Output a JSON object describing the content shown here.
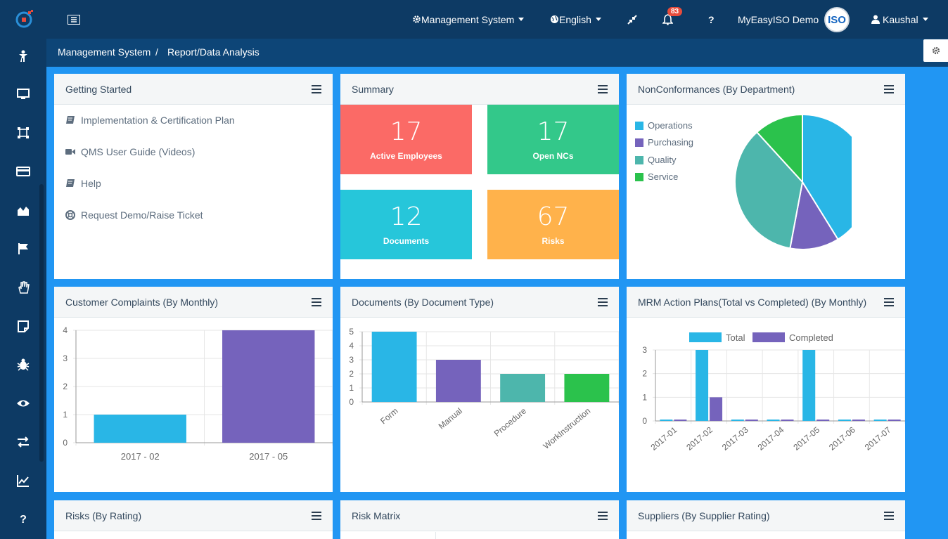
{
  "app": {
    "nav_management": "Management System",
    "nav_language": "English",
    "notification_count": "83",
    "help_label": "?",
    "org_name": "MyEasyISO Demo",
    "avatar_text": "ISO",
    "user_name": "Kaushal"
  },
  "breadcrumb": {
    "root": "Management System",
    "separator": "/",
    "current": "Report/Data Analysis"
  },
  "sidebar_help": "?",
  "getting_started": {
    "title": "Getting Started",
    "items": [
      {
        "label": "Implementation & Certification Plan",
        "icon": "book-icon"
      },
      {
        "label": "QMS User Guide (Videos)",
        "icon": "video-icon"
      },
      {
        "label": "Help",
        "icon": "book-icon"
      },
      {
        "label": "Request Demo/Raise Ticket",
        "icon": "lifering-icon"
      }
    ]
  },
  "summary": {
    "title": "Summary",
    "tiles": [
      {
        "value": "17",
        "label": "Active Employees",
        "color": "#fb6a66"
      },
      {
        "value": "17",
        "label": "Open NCs",
        "color": "#33c88a"
      },
      {
        "value": "12",
        "label": "Documents",
        "color": "#26c6da"
      },
      {
        "value": "67",
        "label": "Risks",
        "color": "#ffb24b"
      }
    ]
  },
  "nc_panel": {
    "title": "NonConformances (By Department)"
  },
  "complaints_panel": {
    "title": "Customer Complaints (By Monthly)"
  },
  "documents_panel": {
    "title": "Documents (By Document Type)"
  },
  "mrm_panel": {
    "title": "MRM Action Plans(Total vs Completed) (By Monthly)"
  },
  "bottom_panels": {
    "risks": "Risks (By Rating)",
    "matrix": "Risk Matrix",
    "suppliers": "Suppliers (By Supplier Rating)"
  },
  "colors": {
    "blue": "#29b6e6",
    "purple": "#7563bc",
    "teal": "#4db6ac",
    "green": "#2bc24c"
  },
  "chart_data": [
    {
      "type": "pie",
      "title": "NonConformances (By Department)",
      "categories": [
        "Operations",
        "Purchasing",
        "Quality",
        "Service"
      ],
      "values": [
        7,
        2,
        6,
        2
      ],
      "colors": [
        "#29b6e6",
        "#7563bc",
        "#4db6ac",
        "#2bc24c"
      ]
    },
    {
      "type": "bar",
      "title": "Customer Complaints (By Monthly)",
      "categories": [
        "2017 - 02",
        "2017 - 05"
      ],
      "values": [
        1,
        4
      ],
      "colors": [
        "#29b6e6",
        "#7563bc"
      ],
      "yticks": [
        "0",
        "1",
        "2",
        "3",
        "4"
      ],
      "ylim": [
        0,
        4
      ]
    },
    {
      "type": "bar",
      "title": "Documents (By Document Type)",
      "categories": [
        "Form",
        "Manual",
        "Procedure",
        "WorkInstruction"
      ],
      "values": [
        5,
        3,
        2,
        2
      ],
      "colors": [
        "#29b6e6",
        "#7563bc",
        "#4db6ac",
        "#2bc24c"
      ],
      "yticks": [
        "0",
        "1",
        "2",
        "3",
        "4",
        "5"
      ],
      "ylim": [
        0,
        5
      ]
    },
    {
      "type": "bar",
      "title": "MRM Action Plans(Total vs Completed) (By Monthly)",
      "categories": [
        "2017-01",
        "2017-02",
        "2017-03",
        "2017-04",
        "2017-05",
        "2017-06",
        "2017-07"
      ],
      "series": [
        {
          "name": "Total",
          "values": [
            0,
            3,
            0,
            0,
            3,
            0,
            0
          ],
          "color": "#29b6e6"
        },
        {
          "name": "Completed",
          "values": [
            0,
            1,
            0,
            0,
            0,
            0,
            0
          ],
          "color": "#7563bc"
        }
      ],
      "yticks": [
        "0",
        "1",
        "2",
        "3"
      ],
      "ylim": [
        0,
        3
      ]
    }
  ]
}
